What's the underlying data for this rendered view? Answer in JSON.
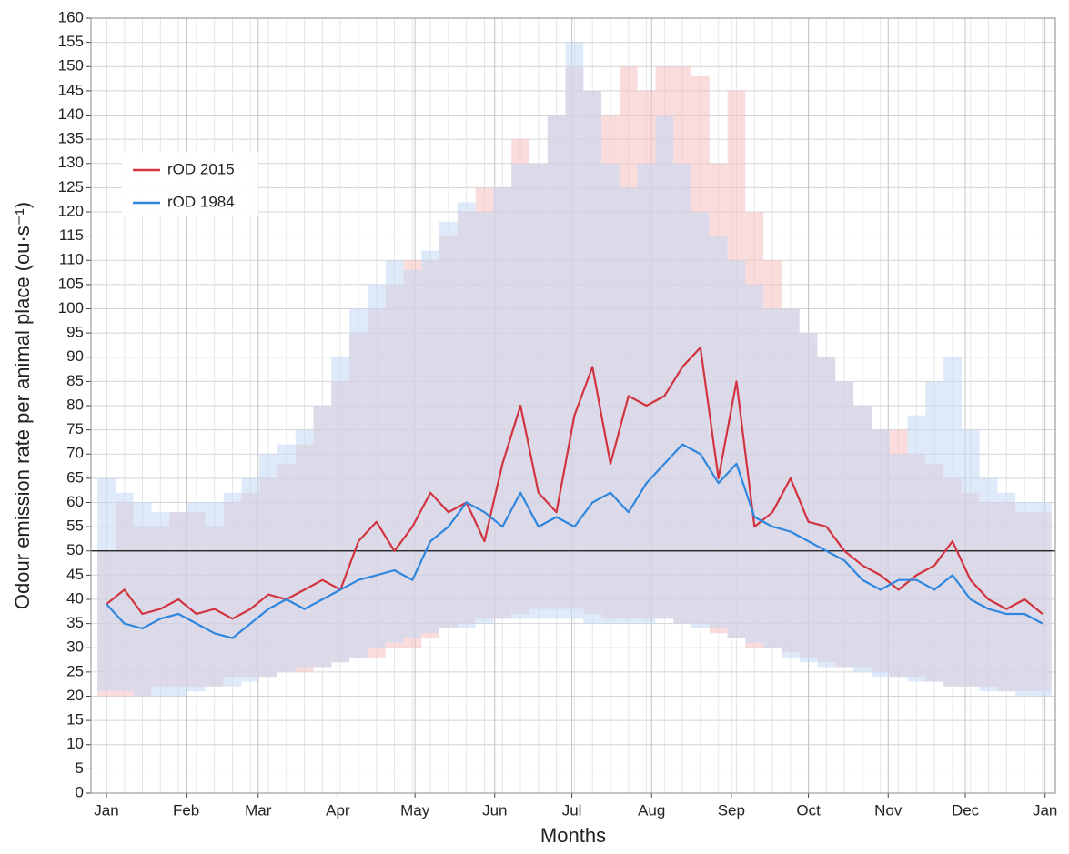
{
  "chart_data": {
    "type": "line",
    "x_label": "Months",
    "y_label": "Odour emission rate per animal place (ou·s⁻¹)",
    "x": [
      0,
      7,
      14,
      21,
      28,
      35,
      42,
      49,
      56,
      63,
      70,
      77,
      84,
      91,
      98,
      105,
      112,
      119,
      126,
      133,
      140,
      147,
      154,
      161,
      168,
      175,
      182,
      189,
      196,
      203,
      210,
      217,
      224,
      231,
      238,
      245,
      252,
      259,
      266,
      273,
      280,
      287,
      294,
      301,
      308,
      315,
      322,
      329,
      336,
      343,
      350,
      357,
      364
    ],
    "xlim": [
      -6,
      369
    ],
    "xticks": [
      {
        "value": 0,
        "label": "Jan"
      },
      {
        "value": 31,
        "label": "Feb"
      },
      {
        "value": 59,
        "label": "Mar"
      },
      {
        "value": 90,
        "label": "Apr"
      },
      {
        "value": 120,
        "label": "May"
      },
      {
        "value": 151,
        "label": "Jun"
      },
      {
        "value": 181,
        "label": "Jul"
      },
      {
        "value": 212,
        "label": "Aug"
      },
      {
        "value": 243,
        "label": "Sep"
      },
      {
        "value": 273,
        "label": "Oct"
      },
      {
        "value": 304,
        "label": "Nov"
      },
      {
        "value": 334,
        "label": "Dec"
      },
      {
        "value": 365,
        "label": "Jan"
      }
    ],
    "ylim": [
      0,
      160
    ],
    "yticks": [
      0,
      5,
      10,
      15,
      20,
      25,
      30,
      35,
      40,
      45,
      50,
      55,
      60,
      65,
      70,
      75,
      80,
      85,
      90,
      95,
      100,
      105,
      110,
      115,
      120,
      125,
      130,
      135,
      140,
      145,
      150,
      155,
      160
    ],
    "grid": true,
    "reference_line": 50,
    "legend": "upper-left",
    "series": [
      {
        "name": "rOD 2015",
        "color": "#d1343f",
        "band_color": "#f7c1c1",
        "values": [
          39,
          42,
          37,
          38,
          40,
          37,
          38,
          36,
          38,
          41,
          40,
          42,
          44,
          42,
          52,
          56,
          50,
          55,
          62,
          58,
          60,
          52,
          68,
          80,
          62,
          58,
          78,
          88,
          68,
          82,
          80,
          82,
          88,
          92,
          65,
          85,
          55,
          58,
          65,
          56,
          55,
          50,
          47,
          45,
          42,
          45,
          47,
          52,
          44,
          40,
          38,
          40,
          37
        ],
        "upper": [
          50,
          60,
          55,
          55,
          58,
          58,
          55,
          60,
          62,
          65,
          68,
          72,
          80,
          85,
          95,
          100,
          105,
          110,
          110,
          115,
          120,
          125,
          125,
          135,
          130,
          140,
          150,
          145,
          140,
          150,
          145,
          150,
          150,
          148,
          130,
          145,
          120,
          110,
          100,
          95,
          90,
          85,
          80,
          75,
          75,
          70,
          68,
          65,
          62,
          60,
          60,
          58,
          58
        ],
        "lower": [
          20,
          20,
          20,
          22,
          22,
          22,
          22,
          24,
          24,
          24,
          25,
          25,
          26,
          27,
          28,
          28,
          30,
          30,
          32,
          34,
          35,
          36,
          36,
          37,
          38,
          38,
          38,
          37,
          36,
          36,
          36,
          36,
          35,
          35,
          33,
          32,
          30,
          30,
          29,
          28,
          27,
          26,
          26,
          25,
          24,
          24,
          23,
          22,
          22,
          22,
          21,
          21,
          21
        ]
      },
      {
        "name": "rOD 1984",
        "color": "#2e86de",
        "band_color": "#c4daf5",
        "values": [
          39,
          35,
          34,
          36,
          37,
          35,
          33,
          32,
          35,
          38,
          40,
          38,
          40,
          42,
          44,
          45,
          46,
          44,
          52,
          55,
          60,
          58,
          55,
          62,
          55,
          57,
          55,
          60,
          62,
          58,
          64,
          68,
          72,
          70,
          64,
          68,
          57,
          55,
          54,
          52,
          50,
          48,
          44,
          42,
          44,
          44,
          42,
          45,
          40,
          38,
          37,
          37,
          35
        ],
        "upper": [
          65,
          62,
          60,
          58,
          58,
          60,
          60,
          62,
          65,
          70,
          72,
          75,
          80,
          90,
          100,
          105,
          110,
          108,
          112,
          118,
          122,
          120,
          125,
          130,
          130,
          140,
          155,
          145,
          130,
          125,
          130,
          140,
          130,
          120,
          115,
          110,
          105,
          100,
          100,
          95,
          90,
          85,
          80,
          75,
          70,
          78,
          85,
          90,
          75,
          65,
          62,
          60,
          60
        ],
        "lower": [
          21,
          21,
          20,
          20,
          20,
          21,
          22,
          22,
          23,
          24,
          25,
          26,
          26,
          27,
          28,
          30,
          31,
          32,
          33,
          34,
          34,
          35,
          36,
          36,
          36,
          36,
          36,
          35,
          35,
          35,
          35,
          36,
          35,
          34,
          34,
          32,
          31,
          30,
          28,
          27,
          26,
          26,
          25,
          24,
          24,
          23,
          23,
          22,
          22,
          21,
          21,
          20,
          20
        ]
      }
    ]
  }
}
